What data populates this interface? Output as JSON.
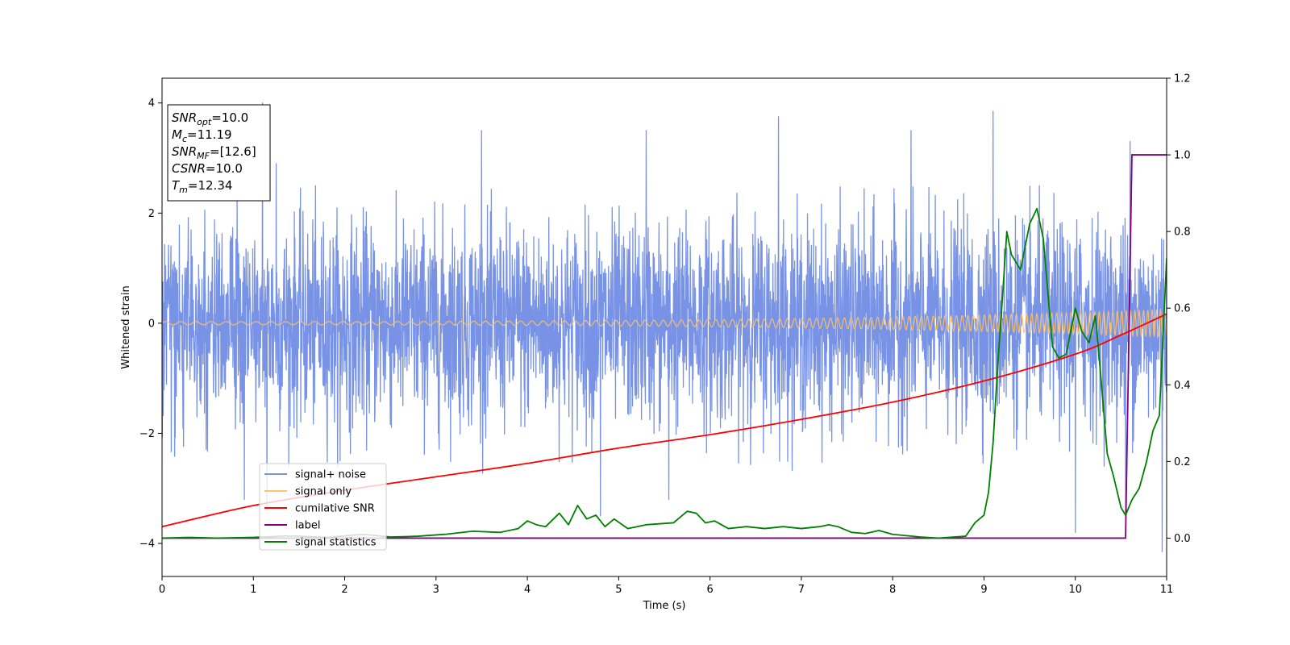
{
  "chart_data": {
    "type": "line",
    "xlabel": "Time (s)",
    "ylabel": "Whitened strain",
    "xlim": [
      0,
      11
    ],
    "ylim": [
      -4.6,
      4.45
    ],
    "y2lim": [
      -0.1,
      1.2
    ],
    "x_ticks": [
      "0",
      "1",
      "2",
      "3",
      "4",
      "5",
      "6",
      "7",
      "8",
      "9",
      "10",
      "11"
    ],
    "y_ticks": [
      "4",
      "2",
      "0",
      "−2",
      "−4"
    ],
    "y_tick_values": [
      4,
      2,
      0,
      -2,
      -4
    ],
    "y2_ticks": [
      "1.2",
      "1.0",
      "0.8",
      "0.6",
      "0.4",
      "0.2",
      "0.0"
    ],
    "y2_tick_values": [
      1.2,
      1.0,
      0.8,
      0.6,
      0.4,
      0.2,
      0.0
    ],
    "grid": false,
    "legend_position": "lower-left",
    "annotation_box": [
      {
        "base": "SNR",
        "sub": "opt",
        "value": "=10.0"
      },
      {
        "base": "M",
        "sub": "c",
        "value": "=11.19"
      },
      {
        "base": "SNR",
        "sub": "MF",
        "value": "=[12.6]"
      },
      {
        "base": "CSNR",
        "sub": "",
        "value": "=10.0"
      },
      {
        "base": "T",
        "sub": "m",
        "value": "=12.34"
      }
    ],
    "series": [
      {
        "name": "signal+ noise",
        "axis": "left",
        "color": "#7893e6",
        "noise_std": 0.9,
        "peak_times": [
          1.1,
          1.25,
          3.5,
          5.3,
          6.75,
          8.2,
          9.1,
          10.6
        ],
        "peak_values": [
          4.0,
          2.9,
          3.5,
          3.5,
          3.75,
          3.5,
          3.85,
          3.3
        ],
        "trough_times": [
          0.9,
          1.15,
          1.95,
          4.8,
          5.55,
          10.0,
          10.55,
          10.95
        ],
        "trough_values": [
          -3.2,
          -3.4,
          -2.5,
          -3.5,
          -3.2,
          -3.8,
          -3.55,
          -4.15
        ]
      },
      {
        "name": "signal only",
        "axis": "left",
        "color": "#ffc266",
        "amplitude_start": 0.03,
        "amplitude_end": 0.25,
        "frequency_start_hz": 6,
        "frequency_end_hz": 22
      },
      {
        "name": "cumilative SNR",
        "axis": "right",
        "color": "#ff0000",
        "x": [
          0,
          1,
          2,
          3,
          4,
          5,
          6,
          7,
          8,
          9,
          10,
          10.5,
          11
        ],
        "y": [
          0.03,
          0.085,
          0.125,
          0.16,
          0.195,
          0.235,
          0.27,
          0.31,
          0.355,
          0.41,
          0.48,
          0.53,
          0.585
        ]
      },
      {
        "name": "label",
        "axis": "right",
        "color": "#800080",
        "x": [
          0,
          10.55,
          10.62,
          11
        ],
        "y": [
          0.0,
          0.0,
          1.0,
          1.0
        ]
      },
      {
        "name": "signal statistics",
        "axis": "right",
        "color": "#008000",
        "x": [
          0,
          0.3,
          0.6,
          1.0,
          1.4,
          1.8,
          2.2,
          2.5,
          2.8,
          3.1,
          3.4,
          3.7,
          3.9,
          4.0,
          4.1,
          4.2,
          4.35,
          4.45,
          4.55,
          4.65,
          4.75,
          4.85,
          4.95,
          5.1,
          5.3,
          5.6,
          5.75,
          5.85,
          5.95,
          6.05,
          6.2,
          6.4,
          6.6,
          6.8,
          7.0,
          7.2,
          7.3,
          7.4,
          7.55,
          7.7,
          7.85,
          8.0,
          8.3,
          8.5,
          8.8,
          8.9,
          9.0,
          9.05,
          9.1,
          9.15,
          9.2,
          9.25,
          9.3,
          9.4,
          9.5,
          9.58,
          9.65,
          9.75,
          9.82,
          9.9,
          10.0,
          10.07,
          10.15,
          10.22,
          10.28,
          10.35,
          10.42,
          10.5,
          10.55,
          10.62,
          10.7,
          10.78,
          10.85,
          10.92,
          11.0
        ],
        "y": [
          0.0,
          0.002,
          0.0,
          0.002,
          0.006,
          0.002,
          0.01,
          0.003,
          0.005,
          0.01,
          0.018,
          0.015,
          0.025,
          0.045,
          0.035,
          0.03,
          0.065,
          0.035,
          0.085,
          0.05,
          0.06,
          0.03,
          0.05,
          0.025,
          0.035,
          0.04,
          0.07,
          0.065,
          0.04,
          0.045,
          0.025,
          0.03,
          0.025,
          0.03,
          0.025,
          0.03,
          0.035,
          0.03,
          0.015,
          0.012,
          0.02,
          0.01,
          0.003,
          0.0,
          0.005,
          0.04,
          0.06,
          0.12,
          0.25,
          0.45,
          0.62,
          0.8,
          0.74,
          0.7,
          0.82,
          0.86,
          0.78,
          0.5,
          0.47,
          0.48,
          0.6,
          0.54,
          0.51,
          0.58,
          0.42,
          0.22,
          0.16,
          0.08,
          0.06,
          0.1,
          0.13,
          0.2,
          0.28,
          0.32,
          0.73
        ]
      }
    ]
  }
}
